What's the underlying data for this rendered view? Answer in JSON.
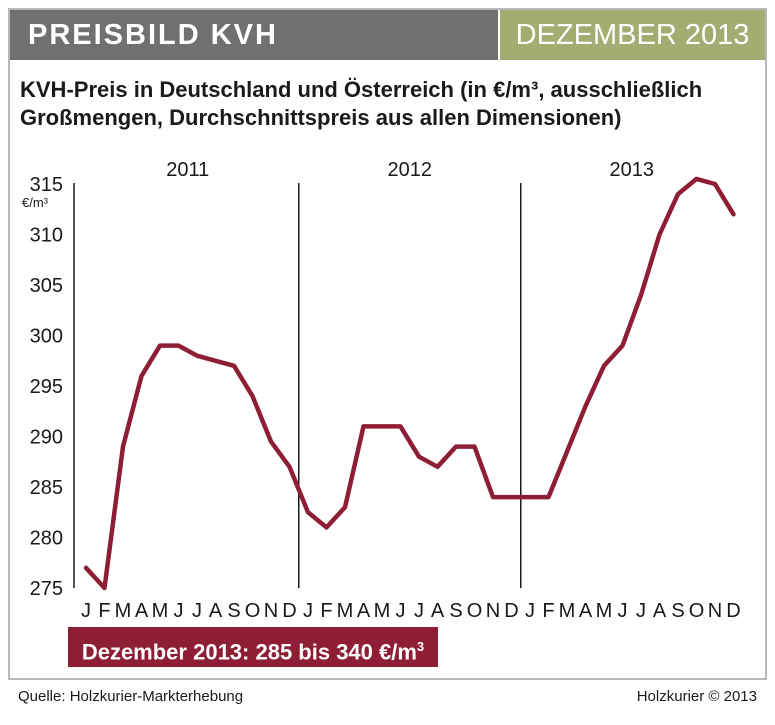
{
  "header": {
    "title": "PREISBILD KVH",
    "date": "DEZEMBER 2013"
  },
  "subtitle": "KVH-Preis in Deutschland und Österreich (in €/m³, ausschließlich Großmengen, Durchschnittspreis aus allen Dimensionen)",
  "banner": {
    "text": "Dezember 2013: 285 bis 340 €/m",
    "sup": "3"
  },
  "footer": {
    "source": "Quelle: Holzkurier-Markterhebung",
    "copyright": "Holzkurier © 2013"
  },
  "colors": {
    "header_bg": "#6f7170",
    "date_bg": "#a2ad72",
    "line": "#8e1e35",
    "banner_bg": "#8e1e35"
  },
  "chart_data": {
    "type": "line",
    "title": "",
    "ylabel": "€/m³",
    "ylim": [
      275,
      316
    ],
    "yticks": [
      275,
      280,
      285,
      290,
      295,
      300,
      305,
      310,
      315
    ],
    "grid": false,
    "years": [
      "2011",
      "2012",
      "2013"
    ],
    "categories": [
      "J",
      "F",
      "M",
      "A",
      "M",
      "J",
      "J",
      "A",
      "S",
      "O",
      "N",
      "D",
      "J",
      "F",
      "M",
      "A",
      "M",
      "J",
      "J",
      "A",
      "S",
      "O",
      "N",
      "D",
      "J",
      "F",
      "M",
      "A",
      "M",
      "J",
      "J",
      "A",
      "S",
      "O",
      "N",
      "D"
    ],
    "series": [
      {
        "values": [
          277,
          275,
          289,
          296,
          299,
          299,
          298,
          297.5,
          297,
          294,
          289.5,
          287,
          282.5,
          281,
          283,
          291,
          291,
          291,
          288,
          287,
          289,
          289,
          284,
          284,
          284,
          284,
          288.5,
          293,
          297,
          299,
          304,
          310,
          314,
          315.5,
          315,
          312
        ]
      }
    ]
  }
}
